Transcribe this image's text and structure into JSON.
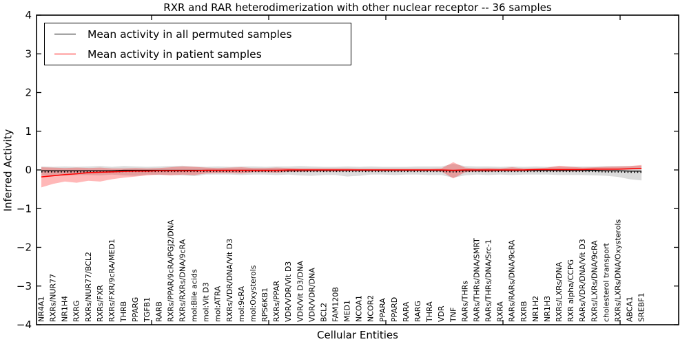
{
  "figure": {
    "title": "RXR and RAR heterodimerization with other nuclear receptor -- 36 samples",
    "xlabel": "Cellular Entities",
    "ylabel": "Inferred Activity",
    "background": "#ffffff",
    "axis_color": "#000000"
  },
  "legend": {
    "position": "upper left",
    "entries": [
      {
        "label": "Mean activity in all permuted samples",
        "color": "#000000"
      },
      {
        "label": "Mean activity in patient samples",
        "color": "#ff0000"
      }
    ]
  },
  "chart_data": {
    "type": "line",
    "title": "RXR and RAR heterodimerization with other nuclear receptor -- 36 samples",
    "xlabel": "Cellular Entities",
    "ylabel": "Inferred Activity",
    "ylim": [
      -4,
      4
    ],
    "yticks": [
      -4,
      -3,
      -2,
      -1,
      0,
      1,
      2,
      3,
      4
    ],
    "grid": false,
    "legend_position": "upper left",
    "categories": [
      "NR4A1",
      "RXRs/NUR77",
      "NR1H4",
      "RXRG",
      "RXRs/NUR77/BCL2",
      "RXRs/FXR",
      "RXRs/FXR/9cRA/MED1",
      "THRB",
      "PPARG",
      "TGFB1",
      "RARB",
      "RXRs/PPAR/9cRA/PGJ2/DNA",
      "RXRs/RXRs/DNA/9cRA",
      "mol:Bile acids",
      "mol:Vit D3",
      "mol:ATRA",
      "RXRs/VDR/DNA/Vit D3",
      "mol:9cRA",
      "mol:Oxysterols",
      "RPS6KB1",
      "RXRs/PPAR",
      "VDR/VDR/Vit D3",
      "VDR/Vit D3/DNA",
      "VDR/VDR/DNA",
      "BCL2",
      "FAM120B",
      "MED1",
      "NCOA1",
      "NCOR2",
      "PPARA",
      "PPARD",
      "RARA",
      "RARG",
      "THRA",
      "VDR",
      "TNF",
      "RARs/THRs",
      "RARs/THRs/DNA/SMRT",
      "RARs/THRs/DNA/Src-1",
      "RXRA",
      "RARs/RARs/DNA/9cRA",
      "RXRB",
      "NR1H2",
      "NR1H3",
      "RXRs/LXRs/DNA",
      "RXR alpha/CCPG",
      "RARs/VDR/DNA/Vit D3",
      "RXRs/LXRs/DNA/9cRA",
      "cholesterol transport",
      "RXRs/LXRs/DNA/Oxysterols",
      "ABCA1",
      "SREBF1"
    ],
    "series": [
      {
        "name": "Mean activity in all permuted samples",
        "color": "#000000",
        "band_color": "rgba(0,0,0,0.14)",
        "values": [
          -0.02,
          -0.02,
          -0.02,
          -0.02,
          -0.02,
          -0.02,
          -0.02,
          -0.01,
          -0.01,
          -0.01,
          -0.01,
          -0.01,
          -0.01,
          -0.01,
          -0.01,
          -0.01,
          -0.01,
          -0.01,
          -0.01,
          -0.01,
          -0.01,
          -0.01,
          -0.01,
          -0.01,
          -0.01,
          -0.01,
          -0.01,
          -0.01,
          -0.01,
          -0.01,
          -0.01,
          -0.01,
          -0.01,
          -0.01,
          -0.01,
          -0.02,
          -0.01,
          -0.01,
          -0.01,
          -0.01,
          -0.01,
          -0.01,
          -0.01,
          -0.01,
          -0.01,
          -0.01,
          -0.01,
          -0.01,
          -0.02,
          -0.02,
          -0.03,
          -0.03
        ],
        "band_upper": [
          0.09,
          0.08,
          0.09,
          0.08,
          0.09,
          0.1,
          0.08,
          0.1,
          0.09,
          0.08,
          0.09,
          0.1,
          0.11,
          0.09,
          0.08,
          0.09,
          0.08,
          0.09,
          0.09,
          0.08,
          0.09,
          0.09,
          0.1,
          0.09,
          0.08,
          0.08,
          0.09,
          0.08,
          0.09,
          0.08,
          0.08,
          0.08,
          0.09,
          0.09,
          0.09,
          0.16,
          0.1,
          0.09,
          0.09,
          0.08,
          0.09,
          0.08,
          0.09,
          0.08,
          0.09,
          0.09,
          0.09,
          0.09,
          0.1,
          0.1,
          0.1,
          0.11
        ],
        "band_lower": [
          -0.15,
          -0.14,
          -0.15,
          -0.13,
          -0.13,
          -0.14,
          -0.12,
          -0.14,
          -0.15,
          -0.12,
          -0.13,
          -0.13,
          -0.14,
          -0.16,
          -0.12,
          -0.12,
          -0.12,
          -0.13,
          -0.12,
          -0.12,
          -0.13,
          -0.12,
          -0.14,
          -0.15,
          -0.13,
          -0.13,
          -0.17,
          -0.15,
          -0.12,
          -0.12,
          -0.13,
          -0.12,
          -0.12,
          -0.13,
          -0.13,
          -0.2,
          -0.14,
          -0.12,
          -0.13,
          -0.12,
          -0.13,
          -0.12,
          -0.12,
          -0.12,
          -0.13,
          -0.13,
          -0.13,
          -0.14,
          -0.15,
          -0.18,
          -0.24,
          -0.27
        ]
      },
      {
        "name": "Mean activity in patient samples",
        "color": "#ff0000",
        "band_color": "rgba(255,0,0,0.28)",
        "values": [
          -0.18,
          -0.15,
          -0.12,
          -0.1,
          -0.07,
          -0.06,
          -0.05,
          -0.04,
          -0.03,
          -0.03,
          -0.02,
          -0.02,
          -0.02,
          -0.02,
          -0.01,
          -0.01,
          -0.01,
          -0.01,
          -0.01,
          -0.01,
          -0.01,
          0.0,
          0.0,
          0.0,
          0.0,
          0.0,
          0.0,
          0.0,
          0.0,
          0.0,
          0.0,
          0.0,
          0.0,
          0.0,
          0.0,
          -0.01,
          0.0,
          0.0,
          0.0,
          0.0,
          0.0,
          0.0,
          0.01,
          0.01,
          0.01,
          0.01,
          0.01,
          0.02,
          0.02,
          0.02,
          0.03,
          0.04
        ],
        "band_upper": [
          0.07,
          0.06,
          0.05,
          0.06,
          0.05,
          0.06,
          0.04,
          0.04,
          0.05,
          0.04,
          0.05,
          0.07,
          0.09,
          0.08,
          0.06,
          0.05,
          0.06,
          0.07,
          0.05,
          0.05,
          0.06,
          0.05,
          0.04,
          0.04,
          0.04,
          0.04,
          0.04,
          0.03,
          0.03,
          0.03,
          0.03,
          0.03,
          0.03,
          0.03,
          0.04,
          0.2,
          0.06,
          0.04,
          0.05,
          0.04,
          0.07,
          0.04,
          0.04,
          0.06,
          0.11,
          0.08,
          0.06,
          0.07,
          0.08,
          0.09,
          0.1,
          0.13
        ],
        "band_lower": [
          -0.45,
          -0.36,
          -0.3,
          -0.33,
          -0.28,
          -0.3,
          -0.24,
          -0.2,
          -0.17,
          -0.14,
          -0.12,
          -0.14,
          -0.12,
          -0.13,
          -0.09,
          -0.08,
          -0.08,
          -0.09,
          -0.06,
          -0.06,
          -0.07,
          -0.05,
          -0.05,
          -0.04,
          -0.04,
          -0.04,
          -0.03,
          -0.03,
          -0.03,
          -0.03,
          -0.03,
          -0.03,
          -0.03,
          -0.03,
          -0.04,
          -0.22,
          -0.06,
          -0.04,
          -0.05,
          -0.03,
          -0.04,
          -0.03,
          -0.02,
          -0.02,
          -0.03,
          -0.03,
          -0.02,
          -0.01,
          -0.01,
          0.0,
          0.01,
          0.02
        ]
      }
    ]
  }
}
